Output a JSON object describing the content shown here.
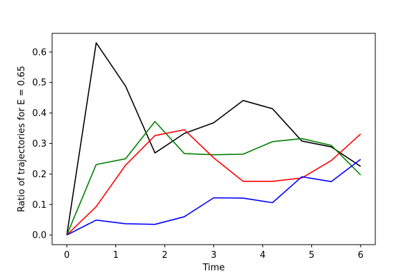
{
  "chart_data": {
    "type": "line",
    "title": "",
    "xlabel": "Time",
    "ylabel": "Ratio of trajectories for E = 0.65",
    "xlim": [
      -0.3,
      6.3
    ],
    "ylim": [
      -0.0315,
      0.661
    ],
    "xticks": [
      0,
      1,
      2,
      3,
      4,
      5,
      6
    ],
    "yticks": [
      0.0,
      0.1,
      0.2,
      0.3,
      0.4,
      0.5,
      0.6
    ],
    "xtick_labels": [
      "0",
      "1",
      "2",
      "3",
      "4",
      "5",
      "6"
    ],
    "ytick_labels": [
      "0.0",
      "0.1",
      "0.2",
      "0.3",
      "0.4",
      "0.5",
      "0.6"
    ],
    "grid": false,
    "legend": false,
    "x": [
      0,
      0.6,
      1.2,
      1.8,
      2.4,
      3.0,
      3.6,
      4.2,
      4.8,
      5.4,
      6.0
    ],
    "series": [
      {
        "color": "#000000",
        "values": [
          0.0,
          0.63,
          0.488,
          0.269,
          0.333,
          0.368,
          0.441,
          0.414,
          0.308,
          0.289,
          0.225
        ]
      },
      {
        "color": "#008000",
        "values": [
          0.0,
          0.231,
          0.25,
          0.372,
          0.267,
          0.263,
          0.265,
          0.306,
          0.316,
          0.294,
          0.197
        ]
      },
      {
        "color": "#ff0000",
        "values": [
          0.0,
          0.093,
          0.229,
          0.326,
          0.345,
          0.253,
          0.176,
          0.176,
          0.187,
          0.244,
          0.331
        ]
      },
      {
        "color": "#0000ff",
        "values": [
          0.0,
          0.049,
          0.037,
          0.035,
          0.06,
          0.122,
          0.121,
          0.106,
          0.191,
          0.175,
          0.248
        ]
      }
    ]
  }
}
